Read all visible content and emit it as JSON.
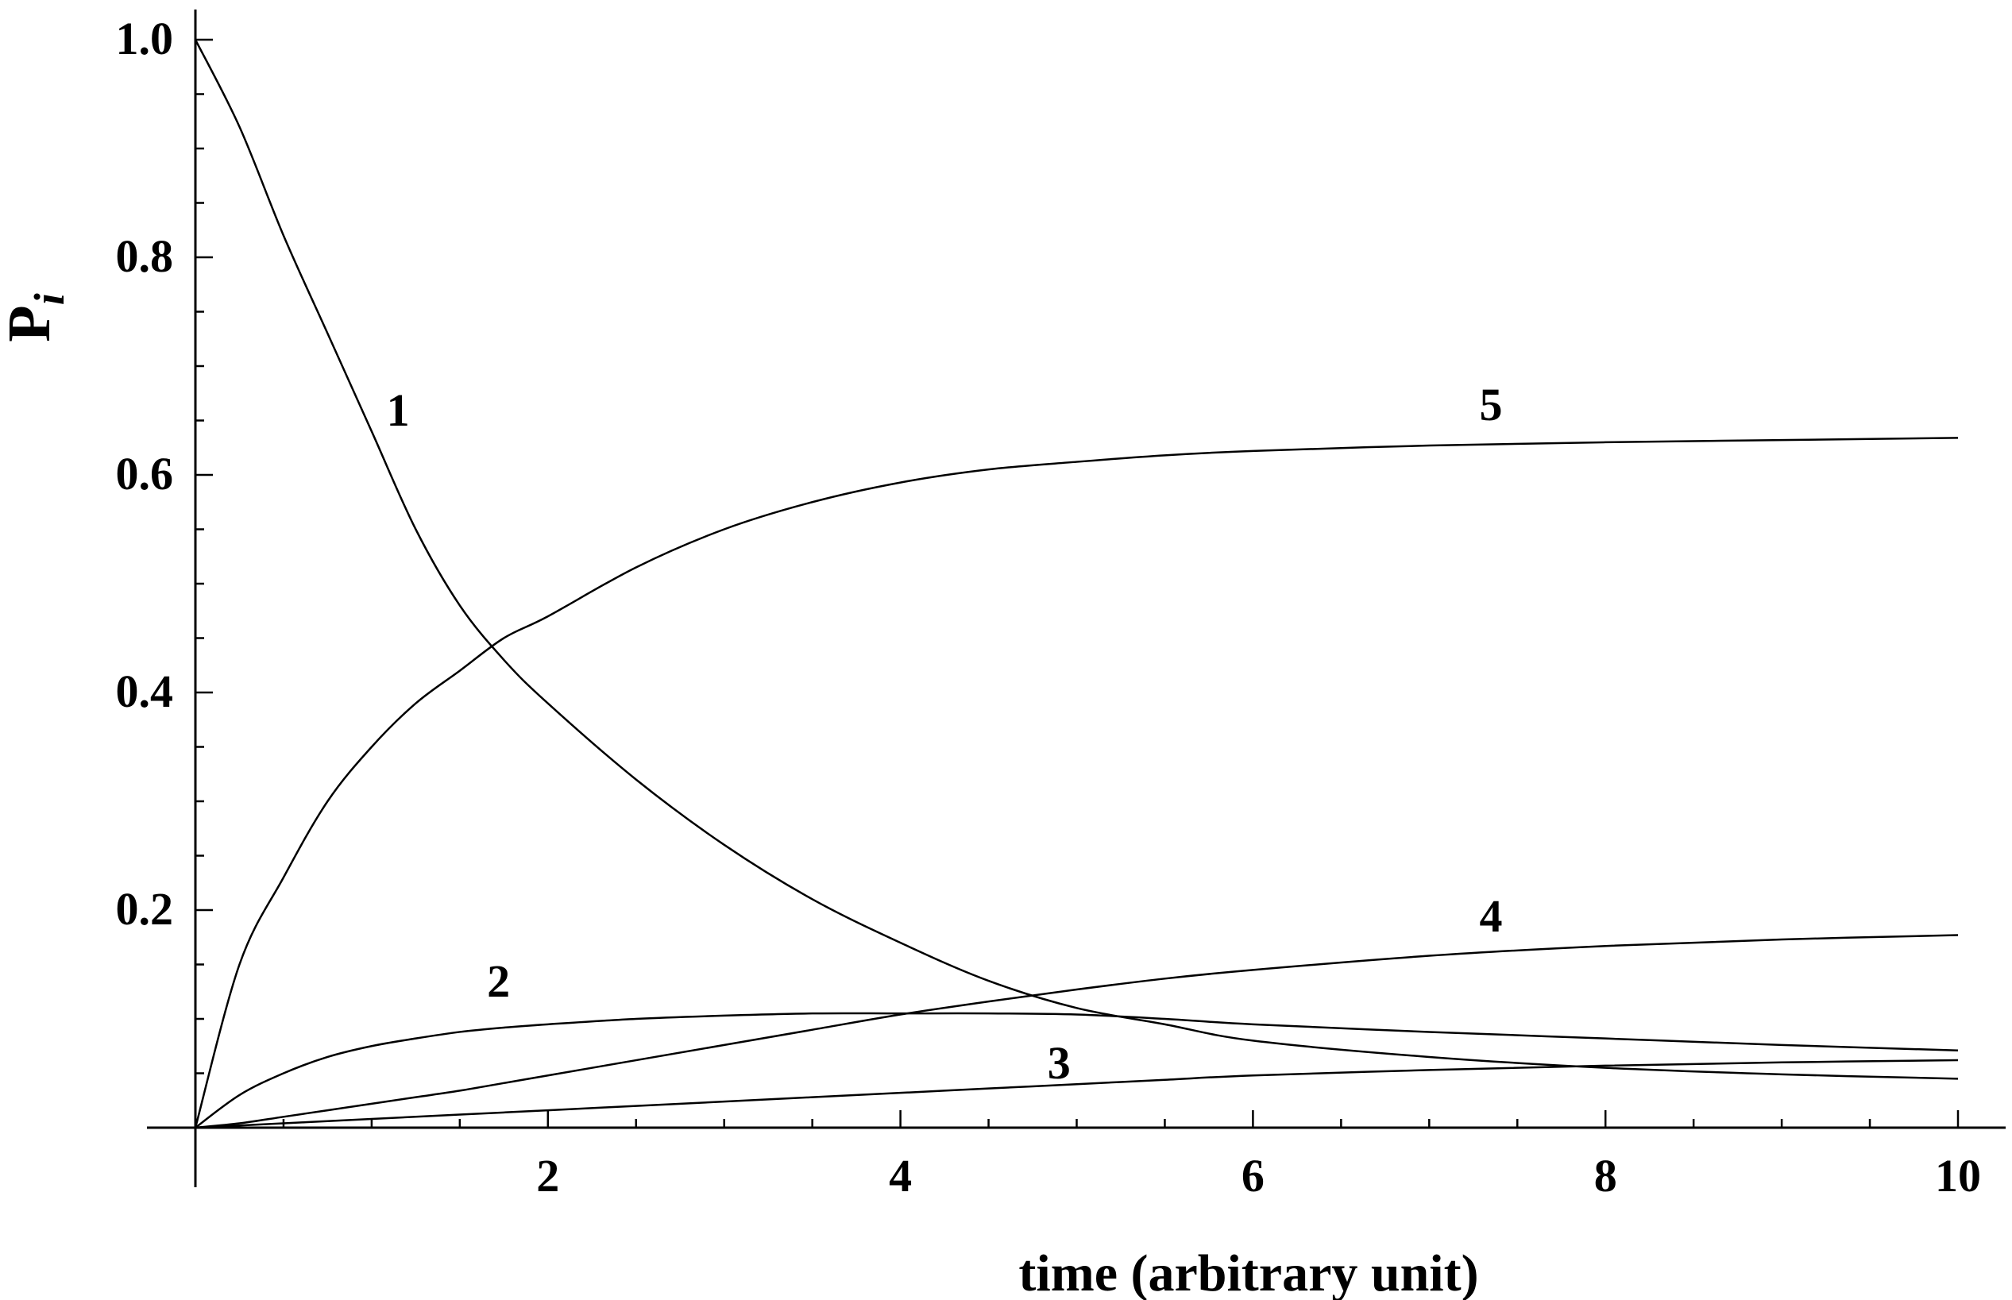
{
  "chart_data": {
    "type": "line",
    "xlabel": "time (arbitrary unit)",
    "ylabel": "P",
    "ylabel_subscript": "i",
    "xlim": [
      0,
      10
    ],
    "ylim": [
      0,
      1.0
    ],
    "x_ticks": [
      2,
      4,
      6,
      8,
      10
    ],
    "x_tick_labels": [
      "2",
      "4",
      "6",
      "8",
      "10"
    ],
    "y_ticks": [
      0.2,
      0.4,
      0.6,
      0.8,
      1.0
    ],
    "y_tick_labels": [
      "0.2",
      "0.4",
      "0.6",
      "0.8",
      "1.0"
    ],
    "grid": false,
    "legend": "none",
    "x": [
      0,
      0.25,
      0.5,
      0.75,
      1,
      1.25,
      1.5,
      1.75,
      2,
      2.5,
      3,
      3.5,
      4,
      4.5,
      5,
      5.5,
      6,
      7,
      8,
      9,
      10
    ],
    "series": [
      {
        "name": "1",
        "values": [
          1.0,
          0.92,
          0.82,
          0.73,
          0.64,
          0.55,
          0.48,
          0.43,
          0.39,
          0.32,
          0.26,
          0.21,
          0.17,
          0.135,
          0.11,
          0.095,
          0.08,
          0.065,
          0.055,
          0.049,
          0.045
        ]
      },
      {
        "name": "2",
        "values": [
          0.0,
          0.03,
          0.05,
          0.065,
          0.075,
          0.082,
          0.088,
          0.092,
          0.095,
          0.1,
          0.103,
          0.105,
          0.105,
          0.105,
          0.104,
          0.1,
          0.095,
          0.088,
          0.082,
          0.076,
          0.071
        ]
      },
      {
        "name": "3",
        "values": [
          0.0,
          0.002,
          0.004,
          0.006,
          0.008,
          0.01,
          0.012,
          0.014,
          0.016,
          0.02,
          0.024,
          0.028,
          0.032,
          0.036,
          0.04,
          0.044,
          0.048,
          0.053,
          0.057,
          0.06,
          0.062
        ]
      },
      {
        "name": "4",
        "values": [
          0.0,
          0.004,
          0.01,
          0.016,
          0.022,
          0.028,
          0.034,
          0.041,
          0.048,
          0.062,
          0.076,
          0.09,
          0.104,
          0.116,
          0.127,
          0.137,
          0.145,
          0.158,
          0.167,
          0.173,
          0.177
        ]
      },
      {
        "name": "5",
        "values": [
          0.0,
          0.15,
          0.23,
          0.3,
          0.35,
          0.39,
          0.42,
          0.45,
          0.47,
          0.515,
          0.55,
          0.575,
          0.593,
          0.605,
          0.612,
          0.618,
          0.622,
          0.627,
          0.63,
          0.632,
          0.634
        ]
      }
    ],
    "curve_labels": [
      {
        "text": "1",
        "x": 1.15,
        "y": 0.66
      },
      {
        "text": "2",
        "x": 1.72,
        "y": 0.135
      },
      {
        "text": "3",
        "x": 4.9,
        "y": 0.06
      },
      {
        "text": "4",
        "x": 7.35,
        "y": 0.195
      },
      {
        "text": "5",
        "x": 7.35,
        "y": 0.665
      }
    ]
  }
}
